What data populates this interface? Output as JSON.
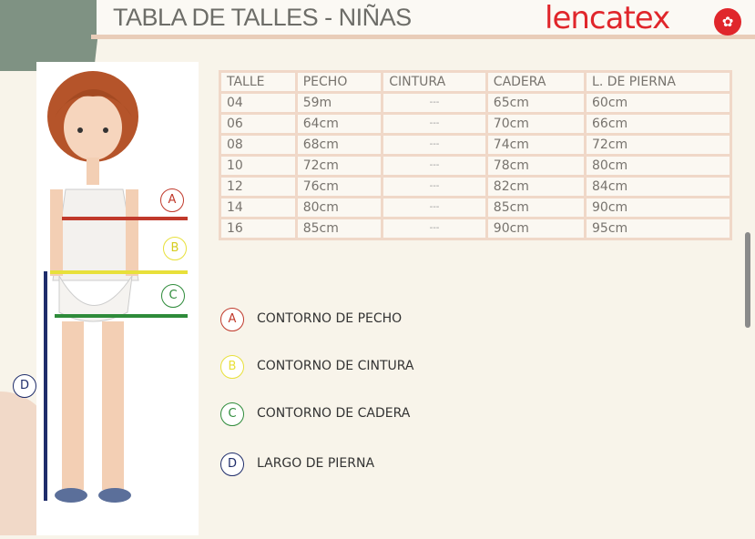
{
  "title": "TABLA DE TALLES - NIÑAS",
  "logo": "lencatex",
  "table": {
    "headers": [
      "TALLE",
      "PECHO",
      "CINTURA",
      "CADERA",
      "L. DE PIERNA"
    ],
    "rows": [
      [
        "04",
        "59m",
        "---",
        "65cm",
        "60cm"
      ],
      [
        "06",
        "64cm",
        "---",
        "70cm",
        "66cm"
      ],
      [
        "08",
        "68cm",
        "---",
        "74cm",
        "72cm"
      ],
      [
        "10",
        "72cm",
        "---",
        "78cm",
        "80cm"
      ],
      [
        "12",
        "76cm",
        "---",
        "82cm",
        "84cm"
      ],
      [
        "14",
        "80cm",
        "---",
        "85cm",
        "90cm"
      ],
      [
        "16",
        "85cm",
        "---",
        "90cm",
        "95cm"
      ]
    ]
  },
  "markers": {
    "a": "A",
    "b": "B",
    "c": "C",
    "d": "D"
  },
  "legend": [
    {
      "letter": "A",
      "label": "CONTORNO DE PECHO",
      "color": "#c0392b"
    },
    {
      "letter": "B",
      "label": "CONTORNO DE CINTURA",
      "color": "#e8e03a"
    },
    {
      "letter": "C",
      "label": "CONTORNO DE CADERA",
      "color": "#2e8b3a"
    },
    {
      "letter": "D",
      "label": "LARGO DE PIERNA",
      "color": "#1f2d6b"
    }
  ]
}
